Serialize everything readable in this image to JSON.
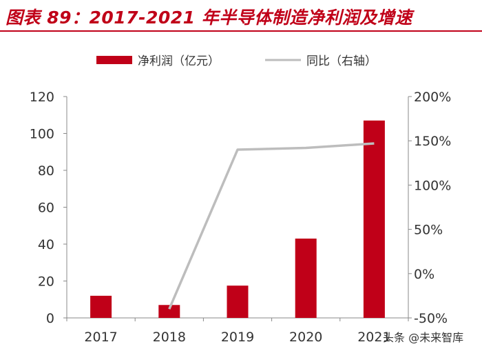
{
  "header": {
    "title": "图表 89：2017-2021 年半导体制造净利润及增速"
  },
  "colors": {
    "bar": "#C00018",
    "line": "#BDBDBD",
    "title": "#C00018",
    "axis": "#888888",
    "text": "#333333"
  },
  "chart_data": {
    "type": "bar",
    "categories": [
      "2017",
      "2018",
      "2019",
      "2020",
      "2021"
    ],
    "x_tick_labels": [
      "2017",
      "2018",
      "2019",
      "2020",
      "2021"
    ],
    "series": [
      {
        "name": "净利润（亿元）",
        "type": "bar",
        "axis": "left",
        "values": [
          12,
          7,
          17.5,
          43,
          107
        ]
      },
      {
        "name": "同比（右轴）",
        "type": "line",
        "axis": "right",
        "values": [
          null,
          -40,
          140,
          142,
          147
        ]
      }
    ],
    "y_left": {
      "range": [
        0,
        120
      ],
      "ticks": [
        "0",
        "20",
        "40",
        "60",
        "80",
        "100",
        "120"
      ]
    },
    "y_right": {
      "range": [
        -50,
        200
      ],
      "ticks": [
        "-50%",
        "0%",
        "50%",
        "100%",
        "150%",
        "200%"
      ]
    },
    "legend_position": "top",
    "grid": false
  },
  "watermark": {
    "text": "头条 @未来智库"
  }
}
